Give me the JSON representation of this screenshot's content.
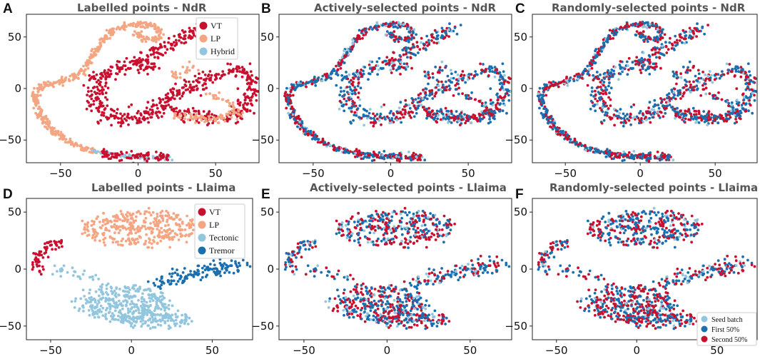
{
  "colors": {
    "vt": "#c8102e",
    "lp": "#f4a582",
    "hybrid": "#92c5de",
    "tectonic": "#92c5de",
    "tremor": "#1a6faf",
    "seed": "#92c5de",
    "first": "#1a6faf",
    "second": "#c8102e"
  },
  "chart_data": [
    {
      "id": "A",
      "letter": "A",
      "type": "scatter",
      "title": "Labelled points - NdR",
      "xlim": [
        -72,
        78
      ],
      "ylim": [
        -72,
        72
      ],
      "xticks": [
        -50,
        0,
        50
      ],
      "yticks": [
        -50,
        0,
        50
      ],
      "dataset": "ndr",
      "mode": "labels",
      "legend": [
        {
          "label": "VT",
          "color_key": "vt"
        },
        {
          "label": "LP",
          "color_key": "lp"
        },
        {
          "label": "Hybrid",
          "color_key": "hybrid"
        }
      ]
    },
    {
      "id": "B",
      "letter": "B",
      "type": "scatter",
      "title": "Actively-selected points - NdR",
      "xlim": [
        -72,
        78
      ],
      "ylim": [
        -72,
        72
      ],
      "xticks": [
        -50,
        0,
        50
      ],
      "yticks": [
        -50,
        0,
        50
      ],
      "dataset": "ndr",
      "mode": "active",
      "legend": []
    },
    {
      "id": "C",
      "letter": "C",
      "type": "scatter",
      "title": "Randomly-selected points - NdR",
      "xlim": [
        -72,
        78
      ],
      "ylim": [
        -72,
        72
      ],
      "xticks": [
        -50,
        0,
        50
      ],
      "yticks": [
        -50,
        0,
        50
      ],
      "dataset": "ndr",
      "mode": "random",
      "legend": []
    },
    {
      "id": "D",
      "letter": "D",
      "type": "scatter",
      "title": "Labelled points - Llaima",
      "xlim": [
        -65,
        75
      ],
      "ylim": [
        -62,
        62
      ],
      "xticks": [
        -50,
        0,
        50
      ],
      "yticks": [
        -50,
        0,
        50
      ],
      "dataset": "llaima",
      "mode": "labels",
      "legend": [
        {
          "label": "VT",
          "color_key": "vt"
        },
        {
          "label": "LP",
          "color_key": "lp"
        },
        {
          "label": "Tectonic",
          "color_key": "tectonic"
        },
        {
          "label": "Tremor",
          "color_key": "tremor"
        }
      ]
    },
    {
      "id": "E",
      "letter": "E",
      "type": "scatter",
      "title": "Actively-selected points - Llaima",
      "xlim": [
        -65,
        75
      ],
      "ylim": [
        -62,
        62
      ],
      "xticks": [
        -50,
        0,
        50
      ],
      "yticks": [
        -50,
        0,
        50
      ],
      "dataset": "llaima",
      "mode": "active",
      "legend": []
    },
    {
      "id": "F",
      "letter": "F",
      "type": "scatter",
      "title": "Randomly-selected points - Llaima",
      "xlim": [
        -65,
        75
      ],
      "ylim": [
        -62,
        62
      ],
      "xticks": [
        -50,
        0,
        50
      ],
      "yticks": [
        -50,
        0,
        50
      ],
      "dataset": "llaima",
      "mode": "random",
      "legend": [
        {
          "label": "Seed batch",
          "color_key": "seed"
        },
        {
          "label": "First 50%",
          "color_key": "first"
        },
        {
          "label": "Second 50%",
          "color_key": "second"
        }
      ]
    }
  ],
  "clusters": {
    "ndr": [
      {
        "cls": "lp",
        "spread": 1.4,
        "density": 2.2,
        "path": [
          [
            -25,
            -63
          ],
          [
            -40,
            -55
          ],
          [
            -55,
            -42
          ],
          [
            -63,
            -25
          ],
          [
            -66,
            -8
          ],
          [
            -63,
            2
          ],
          [
            -52,
            5
          ],
          [
            -40,
            12
          ],
          [
            -32,
            25
          ],
          [
            -25,
            42
          ],
          [
            -18,
            55
          ],
          [
            -5,
            62
          ],
          [
            8,
            62
          ],
          [
            14,
            56
          ],
          [
            12,
            48
          ],
          [
            4,
            48
          ],
          [
            -2,
            54
          ]
        ]
      },
      {
        "cls": "hybrid",
        "spread": 1.2,
        "density": 1.4,
        "path": [
          [
            -30,
            -60
          ],
          [
            -15,
            -64
          ],
          [
            0,
            -66
          ],
          [
            10,
            -67
          ],
          [
            20,
            -67
          ]
        ]
      },
      {
        "cls": "vt",
        "spread": 2.2,
        "density": 2.0,
        "path": [
          [
            -25,
            -63
          ],
          [
            -5,
            -66
          ],
          [
            18,
            -67
          ]
        ]
      },
      {
        "cls": "vt",
        "spread": 3.0,
        "density": 2.0,
        "path": [
          [
            -2,
            25
          ],
          [
            8,
            33
          ],
          [
            20,
            42
          ],
          [
            32,
            52
          ],
          [
            42,
            60
          ]
        ]
      },
      {
        "cls": "vt",
        "spread": 3.5,
        "density": 2.3,
        "path": [
          [
            10,
            22
          ],
          [
            -10,
            22
          ],
          [
            -25,
            10
          ],
          [
            -28,
            -10
          ],
          [
            -22,
            -25
          ],
          [
            -8,
            -30
          ],
          [
            8,
            -25
          ],
          [
            18,
            -12
          ],
          [
            24,
            -5
          ],
          [
            32,
            -2
          ],
          [
            40,
            4
          ],
          [
            45,
            10
          ]
        ]
      },
      {
        "cls": "vt",
        "spread": 3.0,
        "density": 2.0,
        "path": [
          [
            48,
            10
          ],
          [
            56,
            16
          ],
          [
            66,
            20
          ],
          [
            72,
            10
          ],
          [
            72,
            -8
          ],
          [
            68,
            -22
          ],
          [
            58,
            -30
          ],
          [
            45,
            -28
          ],
          [
            32,
            -25
          ],
          [
            20,
            -22
          ]
        ]
      },
      {
        "cls": "lp",
        "spread": 2.2,
        "density": 1.7,
        "path": [
          [
            24,
            -25
          ],
          [
            38,
            -28
          ],
          [
            52,
            -30
          ],
          [
            66,
            -22
          ]
        ]
      },
      {
        "cls": "lp",
        "spread": 2.0,
        "density": 1.2,
        "path": [
          [
            48,
            -5
          ],
          [
            56,
            -12
          ],
          [
            64,
            -18
          ]
        ]
      },
      {
        "cls": "lp",
        "spread": 2.5,
        "density": 1.1,
        "path": [
          [
            22,
            10
          ],
          [
            30,
            18
          ],
          [
            38,
            22
          ]
        ]
      }
    ],
    "llaima": [
      {
        "cls": "lp",
        "blob": true,
        "center": [
          5,
          36
        ],
        "rx": 36,
        "ry": 16,
        "n": 340
      },
      {
        "cls": "vt",
        "spread": 2.0,
        "density": 1.8,
        "path": [
          [
            -58,
            -2
          ],
          [
            -60,
            4
          ],
          [
            -58,
            12
          ],
          [
            -54,
            18
          ],
          [
            -48,
            22
          ],
          [
            -42,
            24
          ]
        ]
      },
      {
        "cls": "tectonic",
        "spread": 2.5,
        "density": 0.9,
        "path": [
          [
            -50,
            -2
          ],
          [
            -45,
            0
          ],
          [
            -38,
            -2
          ],
          [
            -30,
            -4
          ],
          [
            -22,
            -8
          ]
        ]
      },
      {
        "cls": "tectonic",
        "blob": true,
        "center": [
          -5,
          -30
        ],
        "rx": 30,
        "ry": 16,
        "n": 320
      },
      {
        "cls": "tectonic",
        "blob": true,
        "center": [
          15,
          -44
        ],
        "rx": 22,
        "ry": 8,
        "n": 150
      },
      {
        "cls": "tremor",
        "spread": 3.2,
        "density": 2.4,
        "path": [
          [
            15,
            -14
          ],
          [
            28,
            -8
          ],
          [
            40,
            -4
          ],
          [
            52,
            0
          ],
          [
            62,
            3
          ],
          [
            70,
            5
          ]
        ]
      }
    ]
  }
}
